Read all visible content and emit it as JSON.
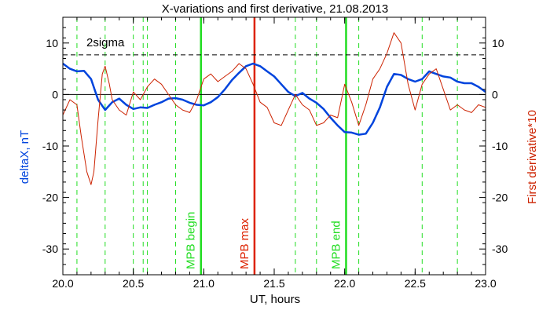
{
  "chart_data": {
    "type": "line",
    "title": "X-variations and first derivative, 21.08.2013",
    "xlabel": "UT, hours",
    "ylabel_left": "deltaX, nT",
    "ylabel_right": "First derivative*10",
    "xlim": [
      20.0,
      23.0
    ],
    "ylim": [
      -35,
      15
    ],
    "x_ticks": [
      "20.0",
      "20.5",
      "21.0",
      "21.5",
      "22.0",
      "22.5",
      "23.0"
    ],
    "y_ticks": [
      "-30",
      "-20",
      "-10",
      "0",
      "10"
    ],
    "colors": {
      "deltaX": "#0044dd",
      "derivative": "#cc2200",
      "markers_green": "#22dd22",
      "marker_red": "#dd2200",
      "axes": "#000000"
    },
    "sigma_line": {
      "label": "2sigma",
      "value": 7.7
    },
    "zero_line": 0,
    "dashed_green_x": [
      20.1,
      20.3,
      20.5,
      20.57,
      20.6,
      20.8,
      21.65,
      21.8,
      22.1,
      22.55,
      22.8
    ],
    "markers": [
      {
        "label": "MPB begin",
        "x": 20.98,
        "color": "#22dd22"
      },
      {
        "label": "MPB max",
        "x": 21.36,
        "color": "#dd2200"
      },
      {
        "label": "MPB end",
        "x": 22.01,
        "color": "#22dd22"
      }
    ],
    "series": [
      {
        "name": "deltaX, nT",
        "x": [
          20.0,
          20.05,
          20.1,
          20.15,
          20.2,
          20.25,
          20.3,
          20.35,
          20.4,
          20.45,
          20.5,
          20.55,
          20.6,
          20.65,
          20.7,
          20.75,
          20.8,
          20.85,
          20.9,
          20.95,
          21.0,
          21.05,
          21.1,
          21.15,
          21.2,
          21.25,
          21.3,
          21.35,
          21.4,
          21.45,
          21.5,
          21.55,
          21.6,
          21.65,
          21.7,
          21.75,
          21.8,
          21.85,
          21.9,
          21.95,
          22.0,
          22.05,
          22.1,
          22.15,
          22.2,
          22.25,
          22.3,
          22.35,
          22.4,
          22.45,
          22.5,
          22.55,
          22.6,
          22.65,
          22.7,
          22.75,
          22.8,
          22.85,
          22.9,
          22.95,
          23.0
        ],
        "values": [
          6.0,
          5.0,
          4.5,
          4.6,
          3.0,
          -1.0,
          -3.0,
          -1.5,
          -0.8,
          -2.0,
          -2.8,
          -2.5,
          -2.6,
          -2.0,
          -1.5,
          -0.8,
          -0.7,
          -1.0,
          -1.6,
          -2.0,
          -2.1,
          -1.5,
          -0.5,
          1.0,
          2.8,
          4.2,
          5.5,
          6.0,
          5.5,
          4.5,
          3.5,
          2.0,
          0.5,
          -0.3,
          0.3,
          -0.8,
          -1.6,
          -2.8,
          -4.5,
          -6.0,
          -7.3,
          -7.4,
          -7.8,
          -7.6,
          -5.5,
          -2.5,
          1.5,
          4.0,
          3.8,
          3.0,
          2.5,
          3.0,
          4.5,
          4.0,
          3.5,
          3.3,
          2.5,
          2.2,
          2.2,
          1.5,
          0.5
        ]
      },
      {
        "name": "First derivative*10",
        "x": [
          20.0,
          20.05,
          20.1,
          20.13,
          20.17,
          20.2,
          20.22,
          20.25,
          20.28,
          20.3,
          20.33,
          20.35,
          20.4,
          20.45,
          20.5,
          20.55,
          20.6,
          20.65,
          20.7,
          20.75,
          20.8,
          20.85,
          20.9,
          20.95,
          21.0,
          21.05,
          21.1,
          21.15,
          21.2,
          21.25,
          21.3,
          21.35,
          21.4,
          21.45,
          21.5,
          21.55,
          21.6,
          21.65,
          21.7,
          21.75,
          21.8,
          21.85,
          21.9,
          21.95,
          22.0,
          22.05,
          22.1,
          22.15,
          22.2,
          22.25,
          22.3,
          22.35,
          22.4,
          22.45,
          22.5,
          22.55,
          22.6,
          22.65,
          22.7,
          22.75,
          22.8,
          22.85,
          22.9,
          22.95,
          23.0
        ],
        "values": [
          -4.0,
          -1.0,
          -2.0,
          -8.0,
          -15.0,
          -17.5,
          -15.0,
          -5.0,
          4.0,
          5.5,
          2.0,
          -1.0,
          -3.0,
          -4.0,
          0.5,
          -1.0,
          1.5,
          3.0,
          2.0,
          0.0,
          -2.0,
          -3.0,
          -3.5,
          -1.0,
          3.0,
          4.0,
          2.5,
          3.5,
          4.5,
          6.0,
          5.0,
          2.0,
          -1.5,
          -2.5,
          -5.5,
          -6.0,
          -3.0,
          0.0,
          -2.0,
          -3.0,
          -6.0,
          -5.5,
          -4.0,
          -4.5,
          2.0,
          -1.5,
          -6.0,
          -2.0,
          3.0,
          5.0,
          8.0,
          12.0,
          10.0,
          2.0,
          -3.0,
          2.0,
          4.0,
          5.0,
          1.0,
          -3.0,
          -2.0,
          -3.0,
          -3.5,
          -2.0,
          -2.5
        ]
      }
    ],
    "grid": false,
    "legend": "none"
  }
}
